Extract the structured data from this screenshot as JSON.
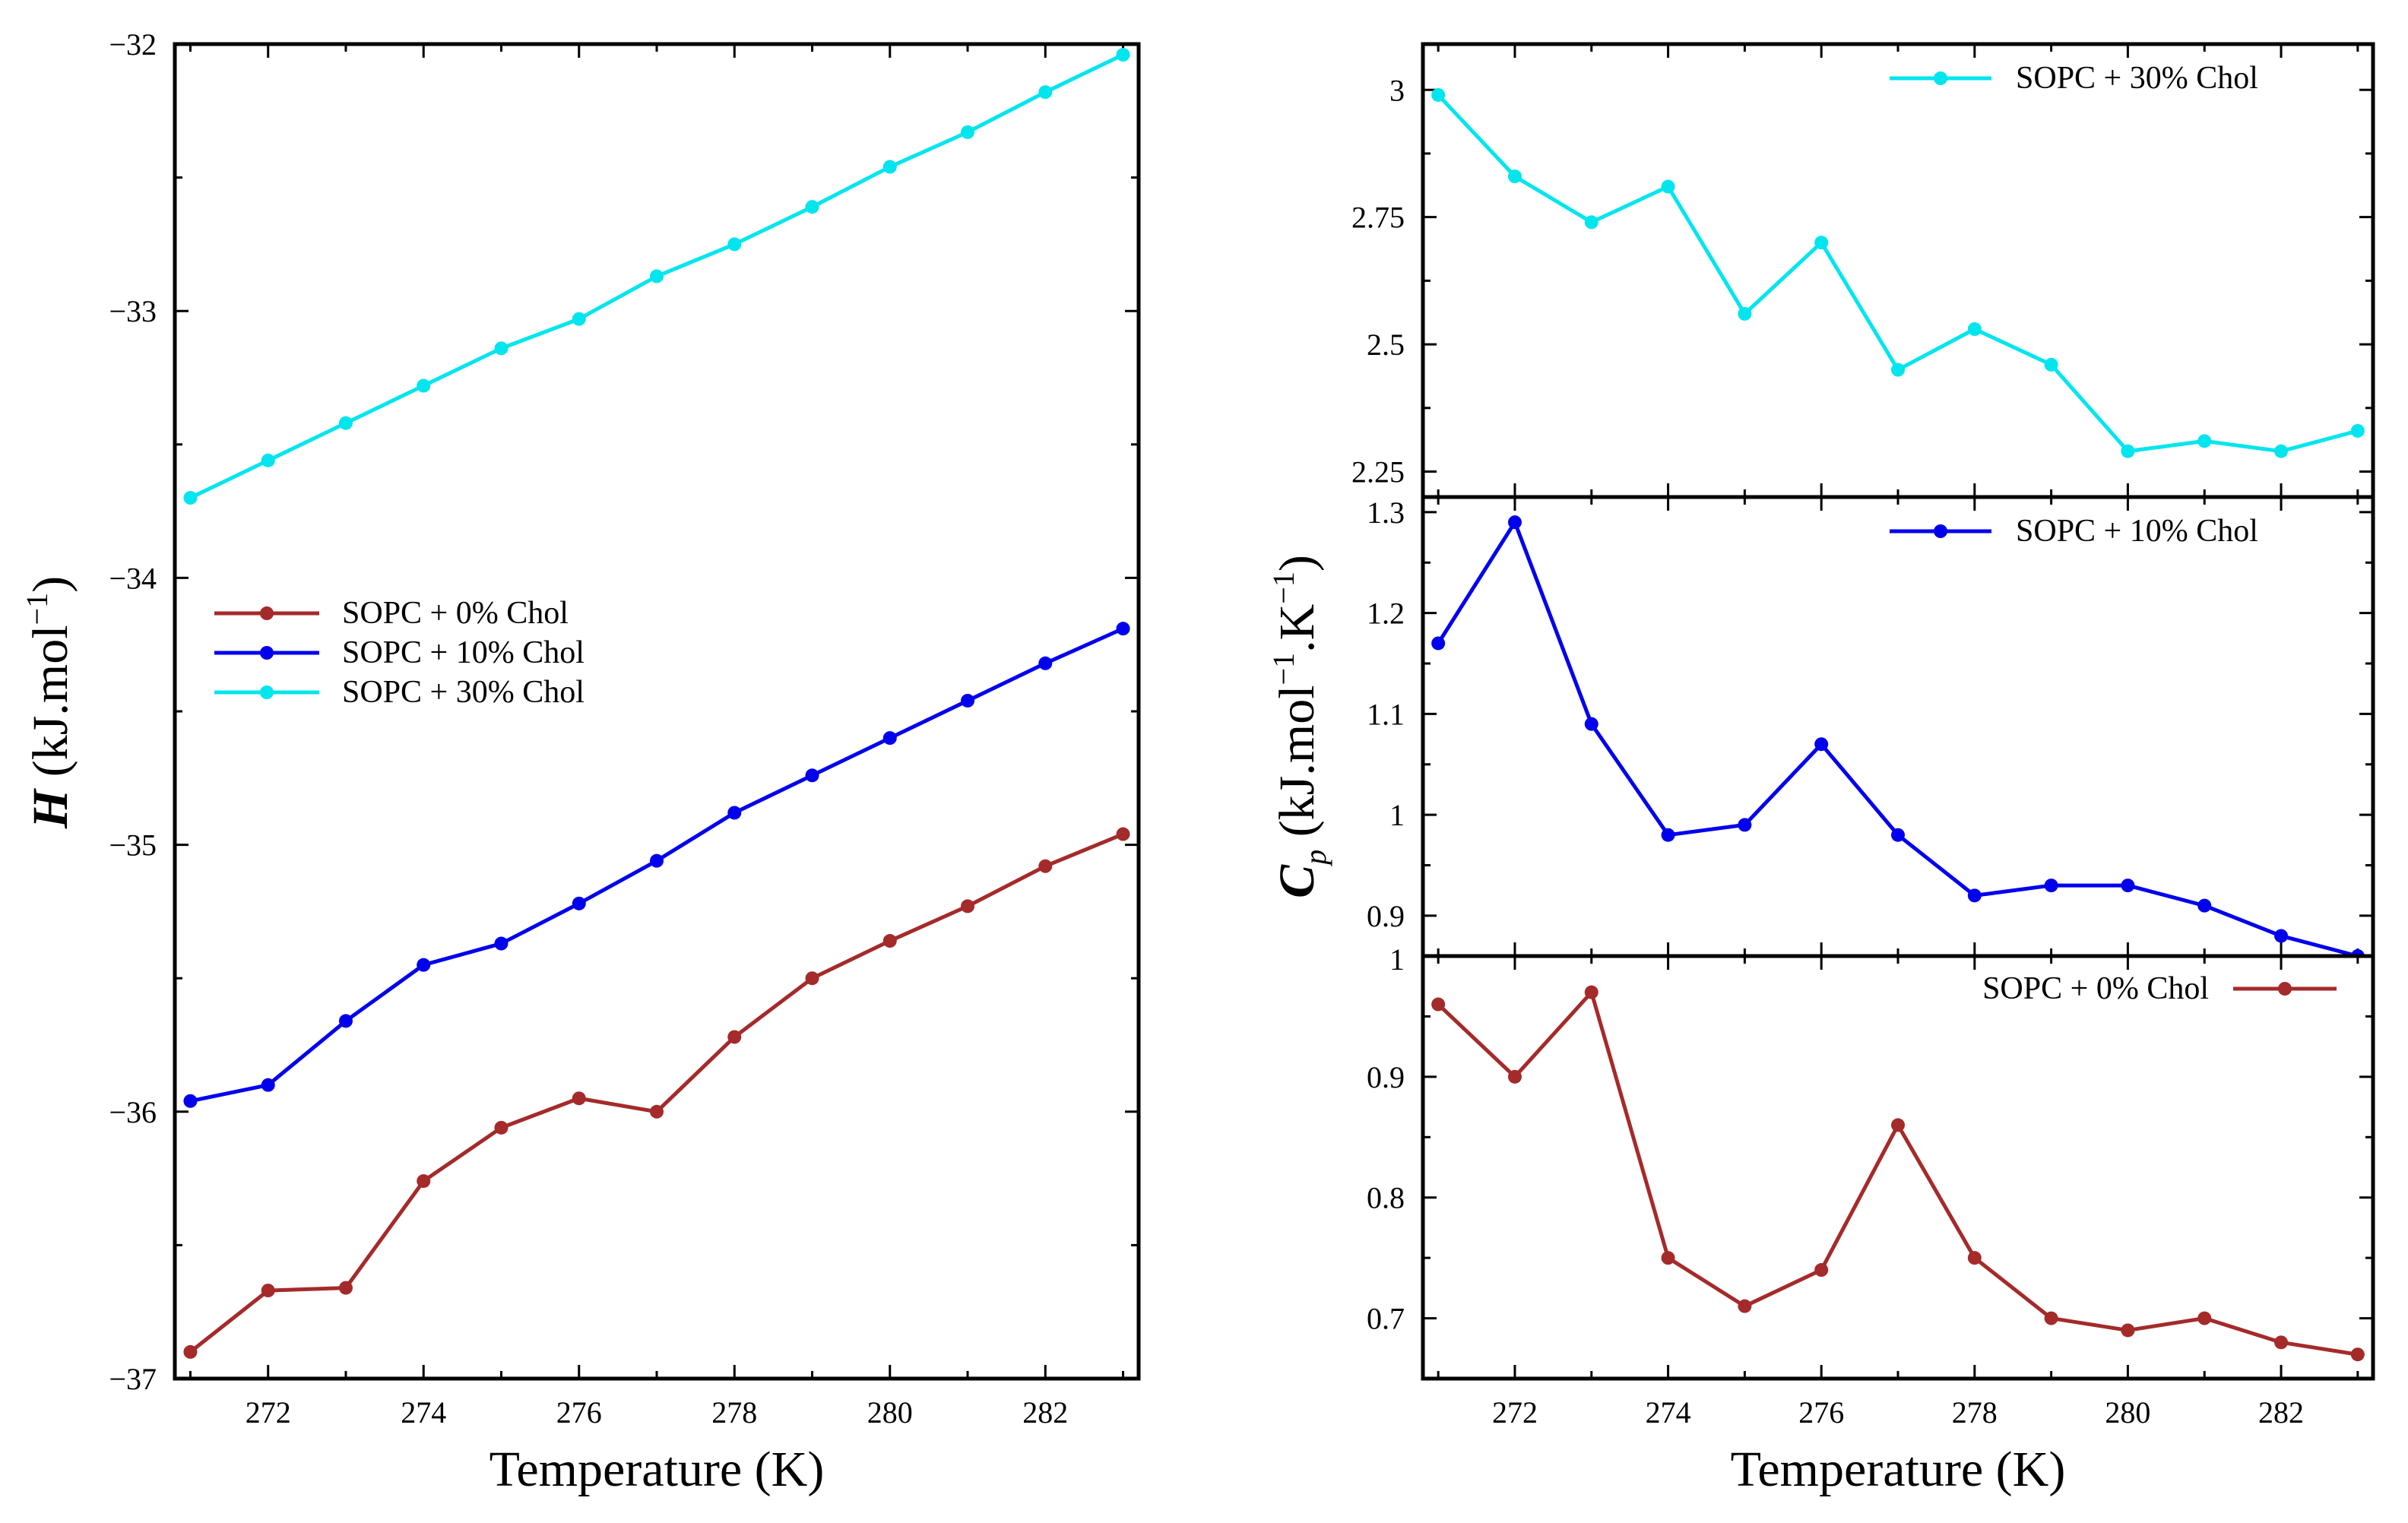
{
  "figure": {
    "xlabel": "Temperature (K)",
    "left_ylabel": {
      "symbol": "H",
      "unit_open": " (kJ.mol",
      "exp": "−1",
      "unit_close": ")"
    },
    "right_ylabel": {
      "symbol": "C",
      "sub": "p",
      "unit_open": " (kJ.mol",
      "exp1": "−1",
      "mid": ".K",
      "exp2": "−1",
      "unit_close": ")"
    }
  },
  "colors": {
    "chol0": "#a52a2a",
    "chol10": "#0000ee",
    "chol30": "#00e5ee"
  },
  "chart_data": [
    {
      "id": "enthalpy",
      "type": "line",
      "title": "",
      "xlabel": "Temperature (K)",
      "ylabel": "H (kJ.mol^-1)",
      "x": [
        271,
        272,
        273,
        274,
        275,
        276,
        277,
        278,
        279,
        280,
        281,
        282,
        283
      ],
      "xlim": [
        270.8,
        283.2
      ],
      "ylim": [
        -37,
        -32
      ],
      "xticks": [
        272,
        274,
        276,
        278,
        280,
        282
      ],
      "yticks": [
        -37,
        -36,
        -35,
        -34,
        -33,
        -32
      ],
      "ytick_labels": [
        "−37",
        "−36",
        "−35",
        "−34",
        "−33",
        "−32"
      ],
      "legend": "center-left",
      "series": [
        {
          "name": "SOPC + 0% Chol",
          "color": "#a52a2a",
          "values": [
            -36.9,
            -36.67,
            -36.66,
            -36.26,
            -36.06,
            -35.95,
            -36.0,
            -35.72,
            -35.5,
            -35.36,
            -35.23,
            -35.08,
            -34.96
          ]
        },
        {
          "name": "SOPC + 10% Chol",
          "color": "#0000ee",
          "values": [
            -35.96,
            -35.9,
            -35.66,
            -35.45,
            -35.37,
            -35.22,
            -35.06,
            -34.88,
            -34.74,
            -34.6,
            -34.46,
            -34.32,
            -34.19
          ]
        },
        {
          "name": "SOPC + 30% Chol",
          "color": "#00e5ee",
          "values": [
            -33.7,
            -33.56,
            -33.42,
            -33.28,
            -33.14,
            -33.03,
            -32.87,
            -32.75,
            -32.61,
            -32.46,
            -32.33,
            -32.18,
            -32.04
          ]
        }
      ]
    },
    {
      "id": "cp30",
      "type": "line",
      "xlabel": "",
      "ylabel": "",
      "x": [
        271,
        272,
        273,
        274,
        275,
        276,
        277,
        278,
        279,
        280,
        281,
        282,
        283
      ],
      "xlim": [
        270.8,
        283.2
      ],
      "ylim": [
        2.2,
        3.09
      ],
      "yticks": [
        2.25,
        2.5,
        2.75,
        3
      ],
      "ytick_labels": [
        "2.25",
        "2.5",
        "2.75",
        "3"
      ],
      "legend": "top-right",
      "series": [
        {
          "name": "SOPC + 30% Chol",
          "color": "#00e5ee",
          "values": [
            2.99,
            2.83,
            2.74,
            2.81,
            2.56,
            2.7,
            2.45,
            2.53,
            2.46,
            2.29,
            2.31,
            2.29,
            2.33
          ]
        }
      ]
    },
    {
      "id": "cp10",
      "type": "line",
      "xlabel": "",
      "ylabel": "",
      "x": [
        271,
        272,
        273,
        274,
        275,
        276,
        277,
        278,
        279,
        280,
        281,
        282,
        283
      ],
      "xlim": [
        270.8,
        283.2
      ],
      "ylim": [
        0.86,
        1.315
      ],
      "yticks": [
        0.9,
        1.0,
        1.1,
        1.2,
        1.3
      ],
      "ytick_labels": [
        "0.9",
        "1",
        "1.1",
        "1.2",
        "1.3"
      ],
      "legend": "top-right",
      "series": [
        {
          "name": "SOPC + 10% Chol",
          "color": "#0000ee",
          "values": [
            1.17,
            1.29,
            1.09,
            0.98,
            0.99,
            1.07,
            0.98,
            0.92,
            0.93,
            0.93,
            0.91,
            0.88,
            0.86
          ]
        }
      ]
    },
    {
      "id": "cp0",
      "type": "line",
      "xlabel": "Temperature (K)",
      "ylabel": "",
      "x": [
        271,
        272,
        273,
        274,
        275,
        276,
        277,
        278,
        279,
        280,
        281,
        282,
        283
      ],
      "xlim": [
        270.8,
        283.2
      ],
      "ylim": [
        0.65,
        1.0
      ],
      "xticks": [
        272,
        274,
        276,
        278,
        280,
        282
      ],
      "yticks": [
        0.7,
        0.8,
        0.9,
        1.0
      ],
      "ytick_labels": [
        "0.7",
        "0.8",
        "0.9",
        "1"
      ],
      "legend": "top-right",
      "series": [
        {
          "name": "SOPC + 0% Chol",
          "color": "#a52a2a",
          "values": [
            0.96,
            0.9,
            0.97,
            0.75,
            0.71,
            0.74,
            0.86,
            0.75,
            0.7,
            0.69,
            0.7,
            0.68,
            0.67
          ]
        }
      ]
    }
  ]
}
